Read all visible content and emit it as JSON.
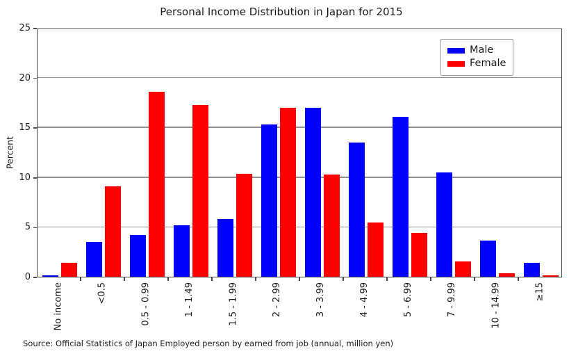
{
  "title": "Personal Income Distribution in Japan for 2015",
  "source_note": "Source: Official Statistics of Japan Employed person by earned from job (annual, million yen)",
  "colors": {
    "male": "#0000ff",
    "female": "#ff0000",
    "gridline": "#8f8f8f",
    "spine": "#4a4a4a",
    "text": "#1a1a1a"
  },
  "legend": {
    "items": [
      {
        "label": "Male",
        "color": "#0000ff"
      },
      {
        "label": "Female",
        "color": "#ff0000"
      }
    ]
  },
  "chart_data": {
    "type": "bar",
    "title": "Personal Income Distribution in Japan for 2015",
    "xlabel": "",
    "ylabel": "Percent",
    "ylim": [
      0,
      25
    ],
    "yticks": [
      0,
      5,
      10,
      15,
      20,
      25
    ],
    "grid": true,
    "legend_position": "upper right",
    "categories": [
      "No income",
      "<0.5",
      "0.5 - 0.99",
      "1 - 1.49",
      "1.5 - 1.99",
      "2 - 2.99",
      "3 - 3.99",
      "4 - 4.99",
      "5 - 6.99",
      "7 - 9.99",
      "10 - 14.99",
      "≥15"
    ],
    "series": [
      {
        "name": "Male",
        "color": "#0000ff",
        "values": [
          0.15,
          3.5,
          4.2,
          5.2,
          5.8,
          15.3,
          17.0,
          13.5,
          16.1,
          10.5,
          3.7,
          1.4
        ]
      },
      {
        "name": "Female",
        "color": "#ff0000",
        "values": [
          1.4,
          9.1,
          18.6,
          17.3,
          10.4,
          17.0,
          10.3,
          5.5,
          4.4,
          1.6,
          0.4,
          0.2
        ]
      }
    ]
  }
}
